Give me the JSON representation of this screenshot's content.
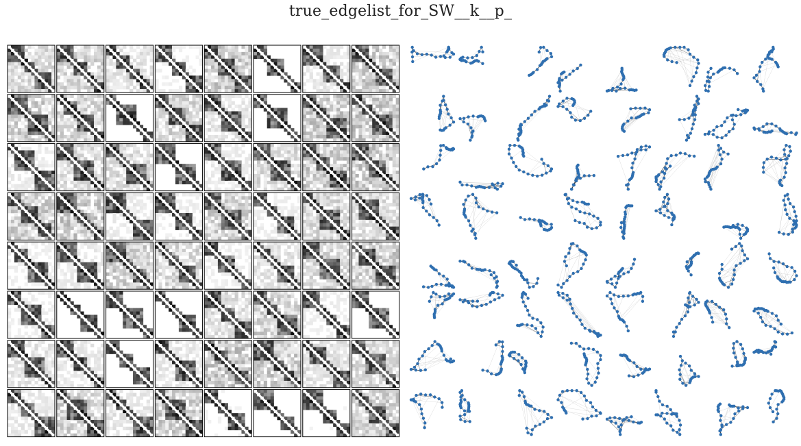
{
  "title": "true_edgelist_for_SW__k__p_",
  "grid": {
    "rows": 8,
    "cols": 8
  },
  "colors": {
    "node": "#2f6fb0",
    "edge_dark": "#111111",
    "edge_light": "#9a9a9a",
    "matrix_border": "#000000"
  }
}
